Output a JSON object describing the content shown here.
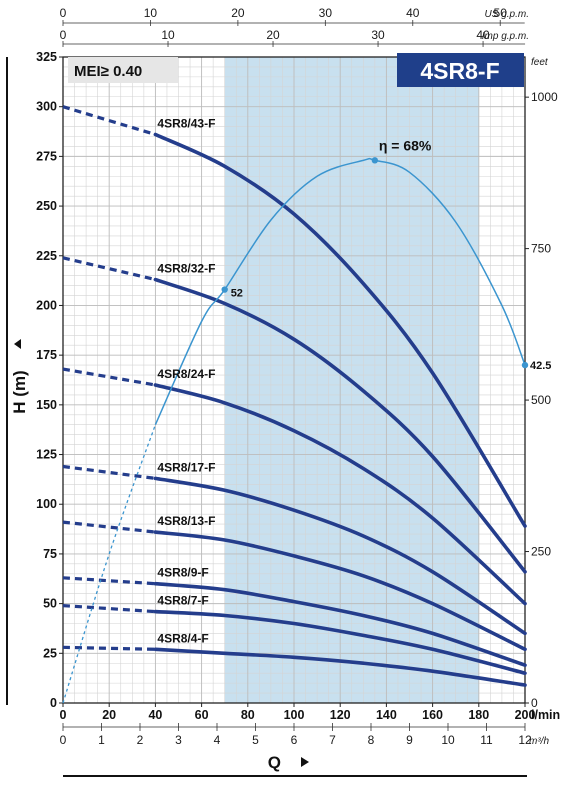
{
  "chart_data": {
    "type": "line",
    "title": "4SR8-F",
    "badge": "MEI≥ 0.40",
    "xlabel": "Q",
    "ylabel": "H (m)",
    "x_unit": "l/min",
    "xlim": [
      0,
      200
    ],
    "ylim": [
      0,
      325
    ],
    "x_ticks": [
      0,
      20,
      40,
      60,
      80,
      100,
      120,
      140,
      160,
      180,
      200
    ],
    "y_ticks": [
      0,
      25,
      50,
      75,
      100,
      125,
      150,
      175,
      200,
      225,
      250,
      275,
      300,
      325
    ],
    "grid": true,
    "secondary_axes": {
      "us_gpm": {
        "label": "US g.p.m.",
        "ticks": [
          0,
          10,
          20,
          30,
          40,
          50
        ]
      },
      "imp_gpm": {
        "label": "Imp g.p.m.",
        "ticks": [
          0,
          10,
          20,
          30,
          40
        ]
      },
      "m3h": {
        "label": "m³/h",
        "ticks": [
          0,
          1,
          2,
          3,
          4,
          5,
          6,
          7,
          8,
          9,
          10,
          11,
          12
        ]
      },
      "feet": {
        "label": "feet",
        "ticks": [
          0,
          250,
          500,
          750,
          1000
        ]
      }
    },
    "operating_range": [
      70,
      180
    ],
    "series": [
      {
        "name": "4SR8/43-F",
        "x": [
          0,
          40,
          70,
          100,
          130,
          160,
          200
        ],
        "y": [
          300,
          286,
          270,
          246,
          211,
          166,
          89
        ]
      },
      {
        "name": "4SR8/32-F",
        "x": [
          0,
          40,
          70,
          100,
          130,
          160,
          200
        ],
        "y": [
          224,
          213,
          201,
          183,
          157,
          124,
          66
        ]
      },
      {
        "name": "4SR8/24-F",
        "x": [
          0,
          40,
          70,
          100,
          130,
          160,
          200
        ],
        "y": [
          168,
          160,
          151,
          137,
          118,
          93,
          50
        ]
      },
      {
        "name": "4SR8/17-F",
        "x": [
          0,
          40,
          70,
          100,
          130,
          160,
          200
        ],
        "y": [
          119,
          113,
          107,
          97,
          84,
          66,
          35
        ]
      },
      {
        "name": "4SR8/13-F",
        "x": [
          0,
          40,
          70,
          100,
          130,
          160,
          200
        ],
        "y": [
          91,
          86,
          82,
          74,
          64,
          50,
          27
        ]
      },
      {
        "name": "4SR8/9-F",
        "x": [
          0,
          40,
          70,
          100,
          130,
          160,
          200
        ],
        "y": [
          63,
          60,
          57,
          51,
          44,
          35,
          19
        ]
      },
      {
        "name": "4SR8/7-F",
        "x": [
          0,
          40,
          70,
          100,
          130,
          160,
          200
        ],
        "y": [
          49,
          46,
          44,
          40,
          34,
          27,
          15
        ]
      },
      {
        "name": "4SR8/4-F",
        "x": [
          0,
          40,
          70,
          100,
          130,
          160,
          200
        ],
        "y": [
          28,
          27,
          25,
          23,
          20,
          16,
          9
        ]
      }
    ],
    "efficiency": {
      "x": [
        0,
        20,
        40,
        60,
        70,
        90,
        110,
        130,
        135,
        150,
        170,
        190,
        200
      ],
      "y": [
        0,
        75,
        140,
        192,
        208,
        243,
        265,
        273,
        273,
        267,
        242,
        200,
        170
      ],
      "labels": [
        {
          "text": "η = 68%",
          "x": 135,
          "y": 273
        },
        {
          "text": "52",
          "x": 70,
          "y": 208
        },
        {
          "text": "42.5",
          "x": 200,
          "y": 170
        }
      ]
    }
  }
}
